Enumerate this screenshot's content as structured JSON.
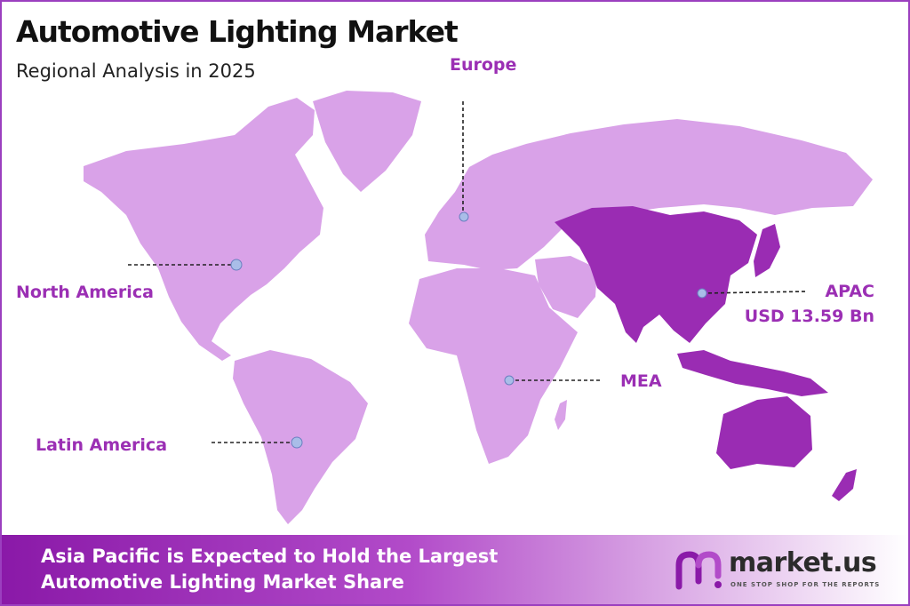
{
  "header": {
    "title": "Automotive Lighting Market",
    "subtitle": "Regional Analysis in 2025"
  },
  "regions": {
    "europe": "Europe",
    "north_america": "North America",
    "latin_america": "Latin America",
    "mea": "MEA",
    "apac": "APAC",
    "apac_value": "USD 13.59 Bn"
  },
  "footer": {
    "line1": "Asia Pacific is Expected to Hold the Largest",
    "line2": "Automotive Lighting Market Share"
  },
  "logo": {
    "name": "market.us",
    "tagline": "ONE STOP SHOP FOR THE REPORTS"
  },
  "colors": {
    "accent": "#9b2fb4",
    "map_light": "#dca6ea",
    "map_dark": "#9a2cb3",
    "marker": "#a9bde8"
  },
  "highlighted_region": "APAC"
}
